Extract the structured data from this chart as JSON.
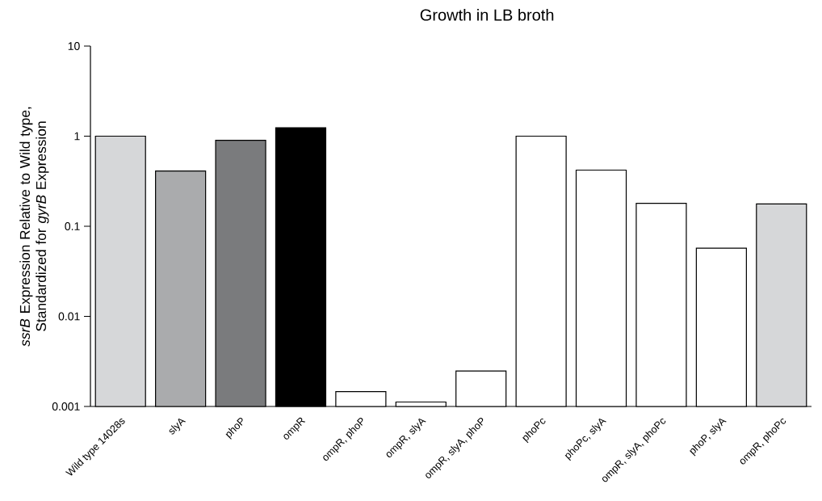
{
  "chart_data": {
    "type": "bar",
    "title": "Growth in LB broth",
    "ylabel": "*ssrB* Expression Relative to Wild type, Standardized for *gyrB* Expression",
    "categories": [
      "Wild type 14028s",
      "slyA",
      "phoP",
      "ompR",
      "ompR, phoP",
      "ompR, slyA",
      "ompR, slyA, phoP",
      "phoPc",
      "phoPc, slyA",
      "ompR, slyA, phoPc",
      "phoP, slyA",
      "ompR, phoPc"
    ],
    "values": [
      1.0,
      0.41,
      0.9,
      1.24,
      0.00146,
      0.00112,
      0.00247,
      1.0,
      0.42,
      0.18,
      0.057,
      0.177
    ],
    "colors": [
      "#d6d7d9",
      "#aaabad",
      "#7a7b7d",
      "#000000",
      "#ffffff",
      "#ffffff",
      "#ffffff",
      "#ffffff",
      "#ffffff",
      "#ffffff",
      "#ffffff",
      "#d6d7d9"
    ],
    "log": true,
    "ylim": [
      0.001,
      10
    ],
    "yticks": [
      0.001,
      0.01,
      0.1,
      1,
      10
    ]
  }
}
